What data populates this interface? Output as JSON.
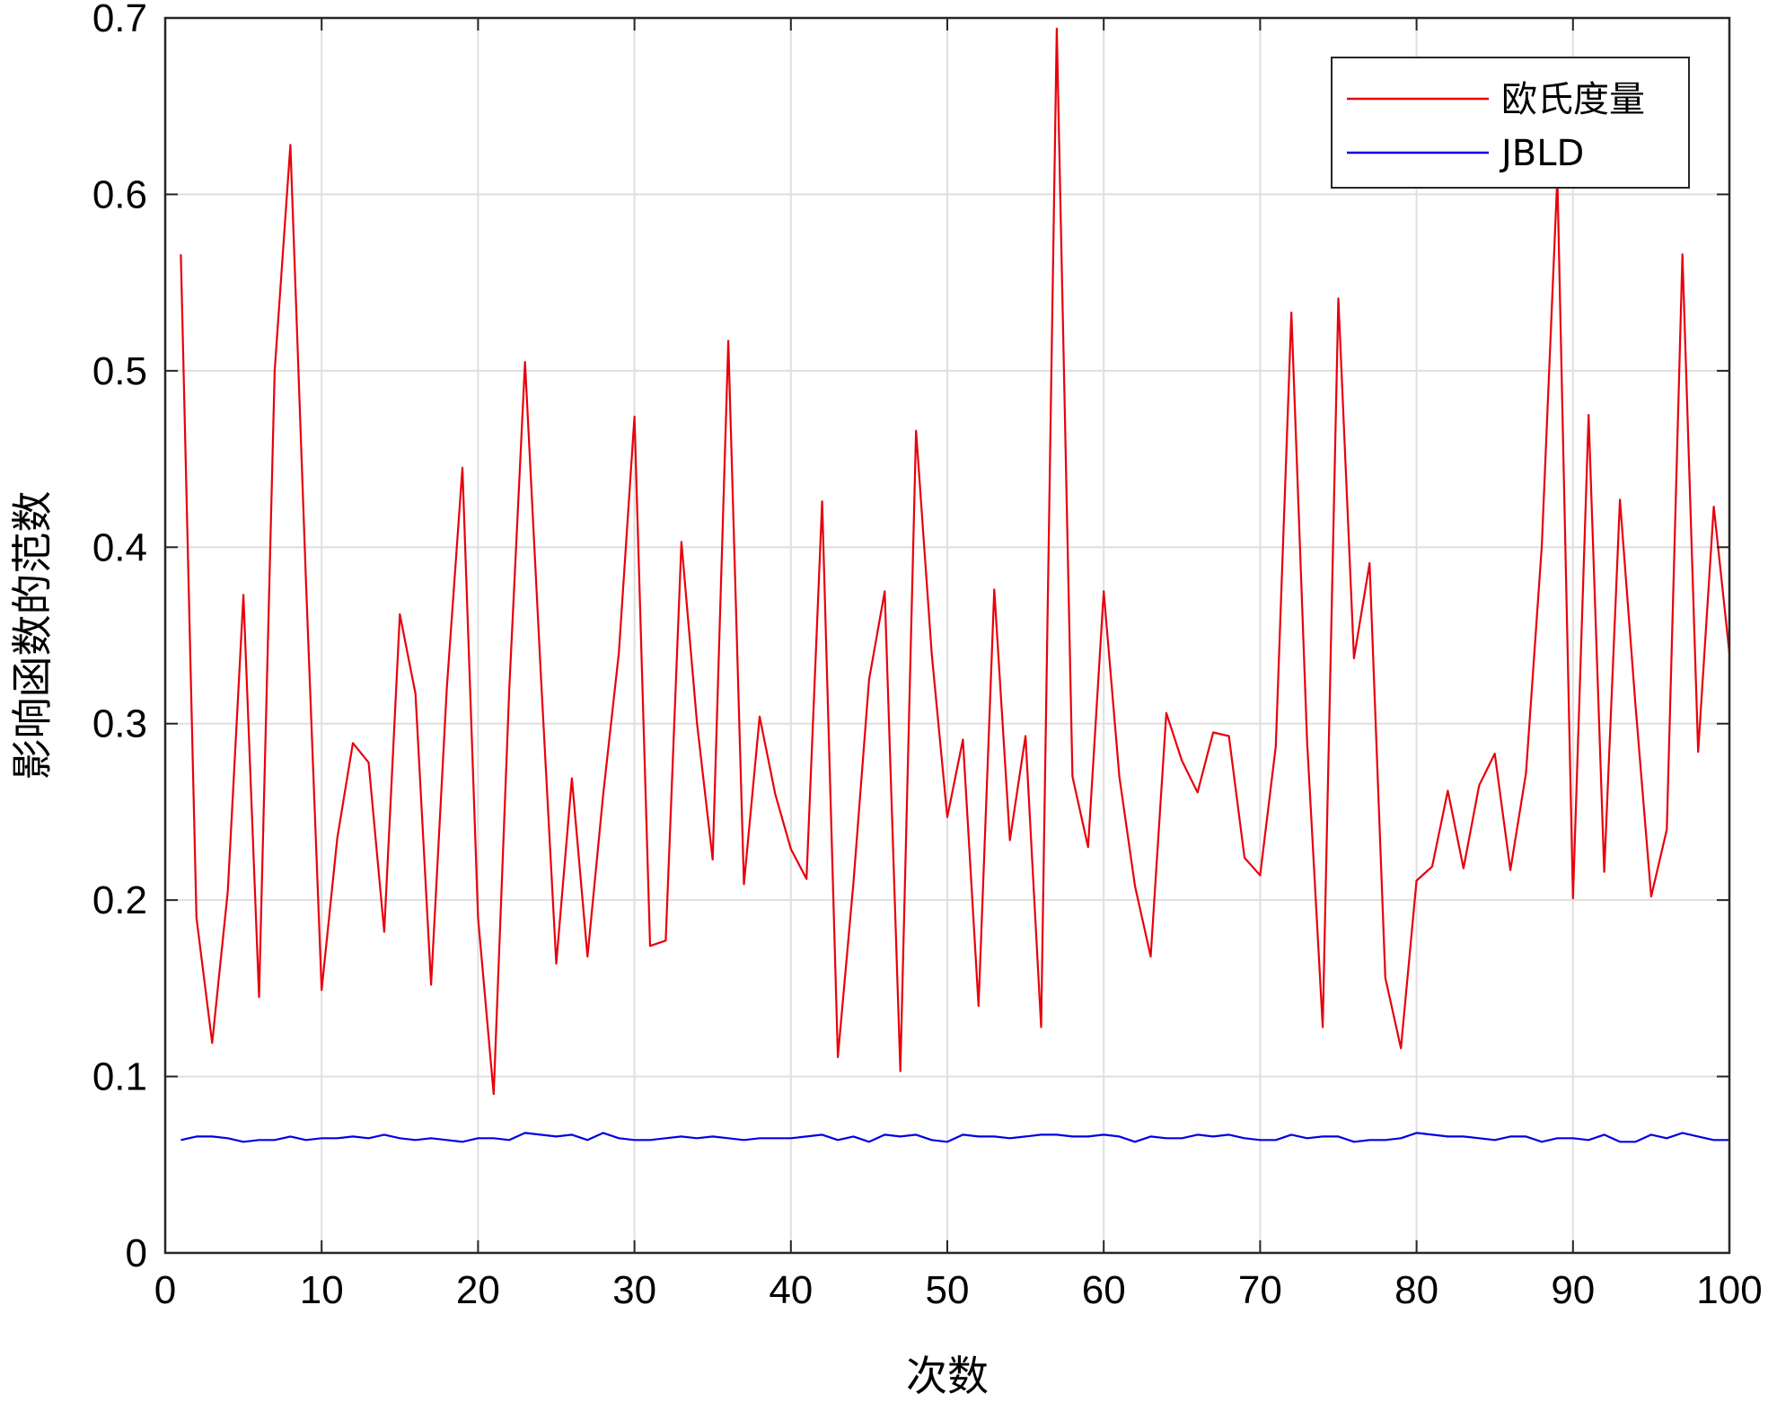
{
  "chart_data": {
    "type": "line",
    "title": "",
    "xlabel": "次数",
    "ylabel": "影响函数的范数",
    "xlim": [
      0,
      100
    ],
    "ylim": [
      0,
      0.7
    ],
    "xticks": [
      0,
      10,
      20,
      30,
      40,
      50,
      60,
      70,
      80,
      90,
      100
    ],
    "yticks": [
      0,
      0.1,
      0.2,
      0.3,
      0.4,
      0.5,
      0.6,
      0.7
    ],
    "grid": true,
    "legend_position": "top-right",
    "x": [
      1,
      2,
      3,
      4,
      5,
      6,
      7,
      8,
      9,
      10,
      11,
      12,
      13,
      14,
      15,
      16,
      17,
      18,
      19,
      20,
      21,
      22,
      23,
      24,
      25,
      26,
      27,
      28,
      29,
      30,
      31,
      32,
      33,
      34,
      35,
      36,
      37,
      38,
      39,
      40,
      41,
      42,
      43,
      44,
      45,
      46,
      47,
      48,
      49,
      50,
      51,
      52,
      53,
      54,
      55,
      56,
      57,
      58,
      59,
      60,
      61,
      62,
      63,
      64,
      65,
      66,
      67,
      68,
      69,
      70,
      71,
      72,
      73,
      74,
      75,
      76,
      77,
      78,
      79,
      80,
      81,
      82,
      83,
      84,
      85,
      86,
      87,
      88,
      89,
      90,
      91,
      92,
      93,
      94,
      95,
      96,
      97,
      98,
      99,
      100
    ],
    "series": [
      {
        "name": "欧氏度量",
        "color": "#e8000b",
        "values": [
          0.566,
          0.19,
          0.119,
          0.205,
          0.373,
          0.145,
          0.5,
          0.628,
          0.38,
          0.149,
          0.235,
          0.289,
          0.278,
          0.182,
          0.362,
          0.317,
          0.152,
          0.32,
          0.445,
          0.19,
          0.09,
          0.32,
          0.505,
          0.33,
          0.164,
          0.269,
          0.168,
          0.26,
          0.34,
          0.474,
          0.174,
          0.177,
          0.403,
          0.3,
          0.223,
          0.517,
          0.209,
          0.304,
          0.26,
          0.229,
          0.212,
          0.426,
          0.111,
          0.21,
          0.325,
          0.375,
          0.103,
          0.466,
          0.34,
          0.247,
          0.291,
          0.14,
          0.376,
          0.234,
          0.293,
          0.128,
          0.694,
          0.27,
          0.23,
          0.375,
          0.27,
          0.208,
          0.168,
          0.306,
          0.279,
          0.261,
          0.295,
          0.293,
          0.224,
          0.214,
          0.287,
          0.533,
          0.29,
          0.128,
          0.541,
          0.337,
          0.391,
          0.156,
          0.116,
          0.211,
          0.219,
          0.262,
          0.218,
          0.265,
          0.283,
          0.217,
          0.272,
          0.4,
          0.61,
          0.201,
          0.475,
          0.216,
          0.427,
          0.31,
          0.202,
          0.24,
          0.566,
          0.284,
          0.423,
          0.34
        ]
      },
      {
        "name": "JBLD",
        "color": "#0000e6",
        "values": [
          0.064,
          0.066,
          0.066,
          0.065,
          0.063,
          0.064,
          0.064,
          0.066,
          0.064,
          0.065,
          0.065,
          0.066,
          0.065,
          0.067,
          0.065,
          0.064,
          0.065,
          0.064,
          0.063,
          0.065,
          0.065,
          0.064,
          0.068,
          0.067,
          0.066,
          0.067,
          0.064,
          0.068,
          0.065,
          0.064,
          0.064,
          0.065,
          0.066,
          0.065,
          0.066,
          0.065,
          0.064,
          0.065,
          0.065,
          0.065,
          0.066,
          0.067,
          0.064,
          0.066,
          0.063,
          0.067,
          0.066,
          0.067,
          0.064,
          0.063,
          0.067,
          0.066,
          0.066,
          0.065,
          0.066,
          0.067,
          0.067,
          0.066,
          0.066,
          0.067,
          0.066,
          0.063,
          0.066,
          0.065,
          0.065,
          0.067,
          0.066,
          0.067,
          0.065,
          0.064,
          0.064,
          0.067,
          0.065,
          0.066,
          0.066,
          0.063,
          0.064,
          0.064,
          0.065,
          0.068,
          0.067,
          0.066,
          0.066,
          0.065,
          0.064,
          0.066,
          0.066,
          0.063,
          0.065,
          0.065,
          0.064,
          0.067,
          0.063,
          0.063,
          0.067,
          0.065,
          0.068,
          0.066,
          0.064,
          0.064
        ]
      }
    ]
  }
}
